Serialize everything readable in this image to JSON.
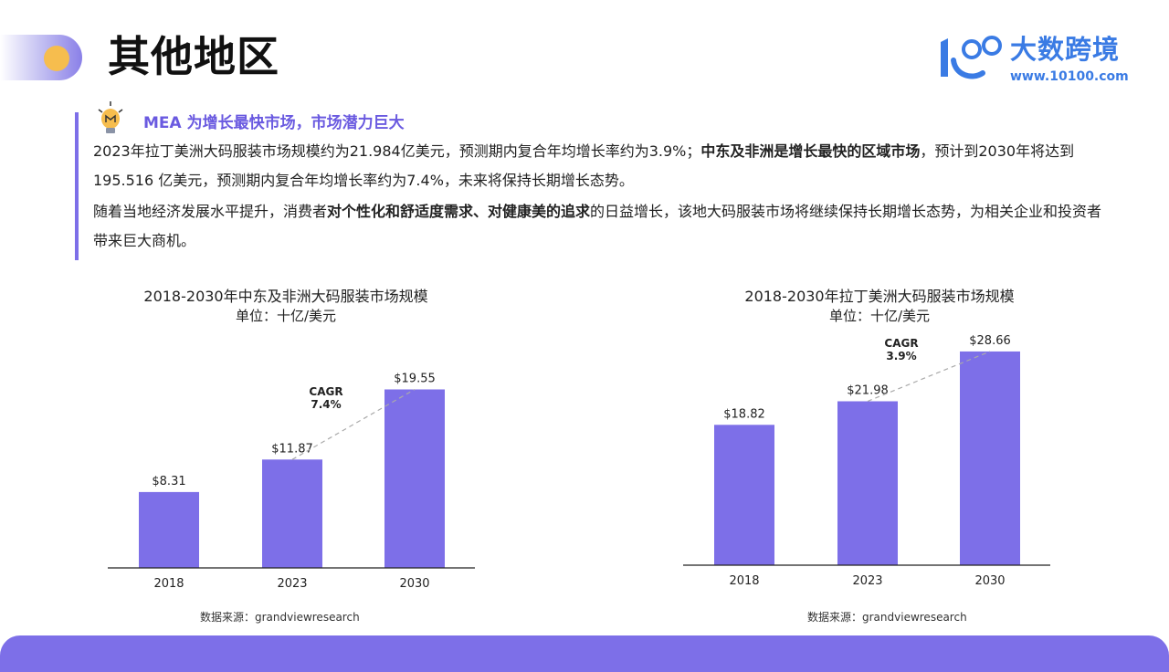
{
  "page": {
    "title": "其他地区",
    "headline": "MEA 为增长最快市场，市场潜力巨大",
    "brand": {
      "name": "大数跨境",
      "url": "www.10100.com"
    },
    "paragraph1": {
      "part1": "2023年拉丁美洲大码服装市场规模约为21.984亿美元，预测期内复合年均增长率约为3.9%；",
      "bold": "中东及非洲是增长最快的区域市场",
      "part2": "，预计到2030年将达到 195.516 亿美元，预测期内复合年均增长率约为7.4%，未来将保持长期增长态势。"
    },
    "paragraph2": {
      "part1": "随着当地经济发展水平提升，消费者",
      "bold": "对个性化和舒适度需求、对健康美的追求",
      "part2": "的日益增长，该地大码服装市场将继续保持长期增长态势，为相关企业和投资者带来巨大商机。"
    },
    "colors": {
      "accent": "#7d6fe8",
      "bar": "#7d6fe8",
      "dot": "#f6bd4e",
      "brand": "#3a7be4"
    }
  },
  "chart_data": [
    {
      "type": "bar",
      "title": "2018-2030年中东及非洲大码服装市场规模",
      "unit": "单位：十亿/美元",
      "categories": [
        "2018",
        "2023",
        "2030"
      ],
      "values": [
        8.31,
        11.87,
        19.55
      ],
      "value_labels": [
        "$8.31",
        "$11.87",
        "$19.55"
      ],
      "annotation": {
        "line1": "CAGR",
        "line2": "7.4%"
      },
      "source": "数据来源：grandviewresearch",
      "ylim": [
        0,
        21
      ]
    },
    {
      "type": "bar",
      "title": "2018-2030年拉丁美洲大码服装市场规模",
      "unit": "单位：十亿/美元",
      "categories": [
        "2018",
        "2023",
        "2030"
      ],
      "values": [
        18.82,
        21.98,
        28.66
      ],
      "value_labels": [
        "$18.82",
        "$21.98",
        "$28.66"
      ],
      "annotation": {
        "line1": "CAGR",
        "line2": "3.9%"
      },
      "source": "数据来源：grandviewresearch",
      "ylim": [
        0,
        30
      ]
    }
  ]
}
